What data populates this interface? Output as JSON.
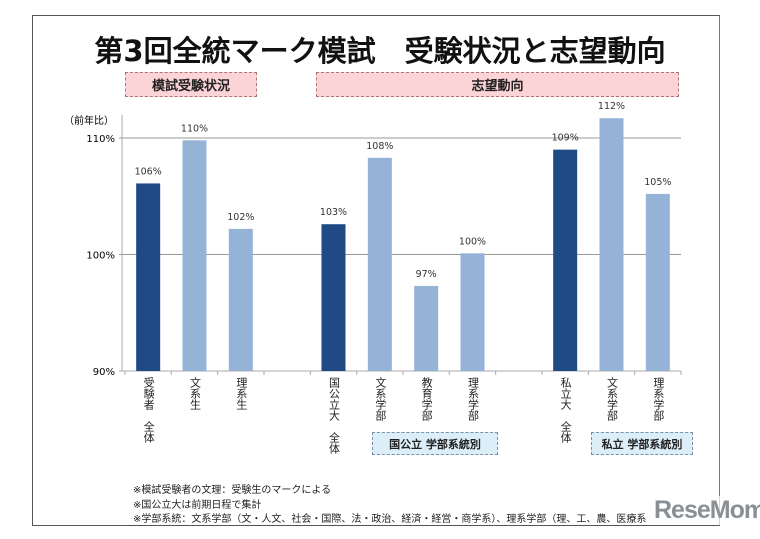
{
  "title": "第3回全統マーク模試　受験状況と志望動向",
  "sections": {
    "exam_status": "模試受験状況",
    "preference_trend": "志望動向",
    "national_by_faculty": "国公立 学部系統別",
    "private_by_faculty": "私立 学部系統別"
  },
  "notes": [
    "※模試受験者の文理：受験生のマークによる",
    "※国公立大は前期日程で集計",
    "※学部系統：文系学部（文・人文、社会・国際、法・政治、経済・経営・商学系）、理系学部（理、工、農、医療系"
  ],
  "logo": "ReseMom",
  "chart_data": {
    "type": "bar",
    "ylabel": "（前年比）",
    "ylim": [
      90,
      112
    ],
    "yticks": [
      90,
      100,
      110
    ],
    "ytick_labels": [
      "90%",
      "100%",
      "110%"
    ],
    "grid": true,
    "categories": [
      "受験者 全体",
      "文系生",
      "理系生",
      "",
      "国公立大 全体",
      "文系学部",
      "教育学部",
      "理系学部",
      "",
      "私立大 全体",
      "文系学部",
      "理系学部"
    ],
    "values": [
      106.1,
      109.8,
      102.2,
      null,
      102.6,
      108.3,
      97.3,
      100.1,
      null,
      109.0,
      111.7,
      105.2
    ],
    "data_labels": [
      "106%",
      "110%",
      "102%",
      "",
      "103%",
      "108%",
      "97%",
      "100%",
      "",
      "109%",
      "112%",
      "105%"
    ],
    "bar_kind": [
      "total",
      "sub",
      "sub",
      "",
      "total",
      "sub",
      "sub",
      "sub",
      "",
      "total",
      "sub",
      "sub"
    ],
    "colors": {
      "total": "#1f4a85",
      "sub": "#95b3d7",
      "grid": "#999999"
    }
  }
}
